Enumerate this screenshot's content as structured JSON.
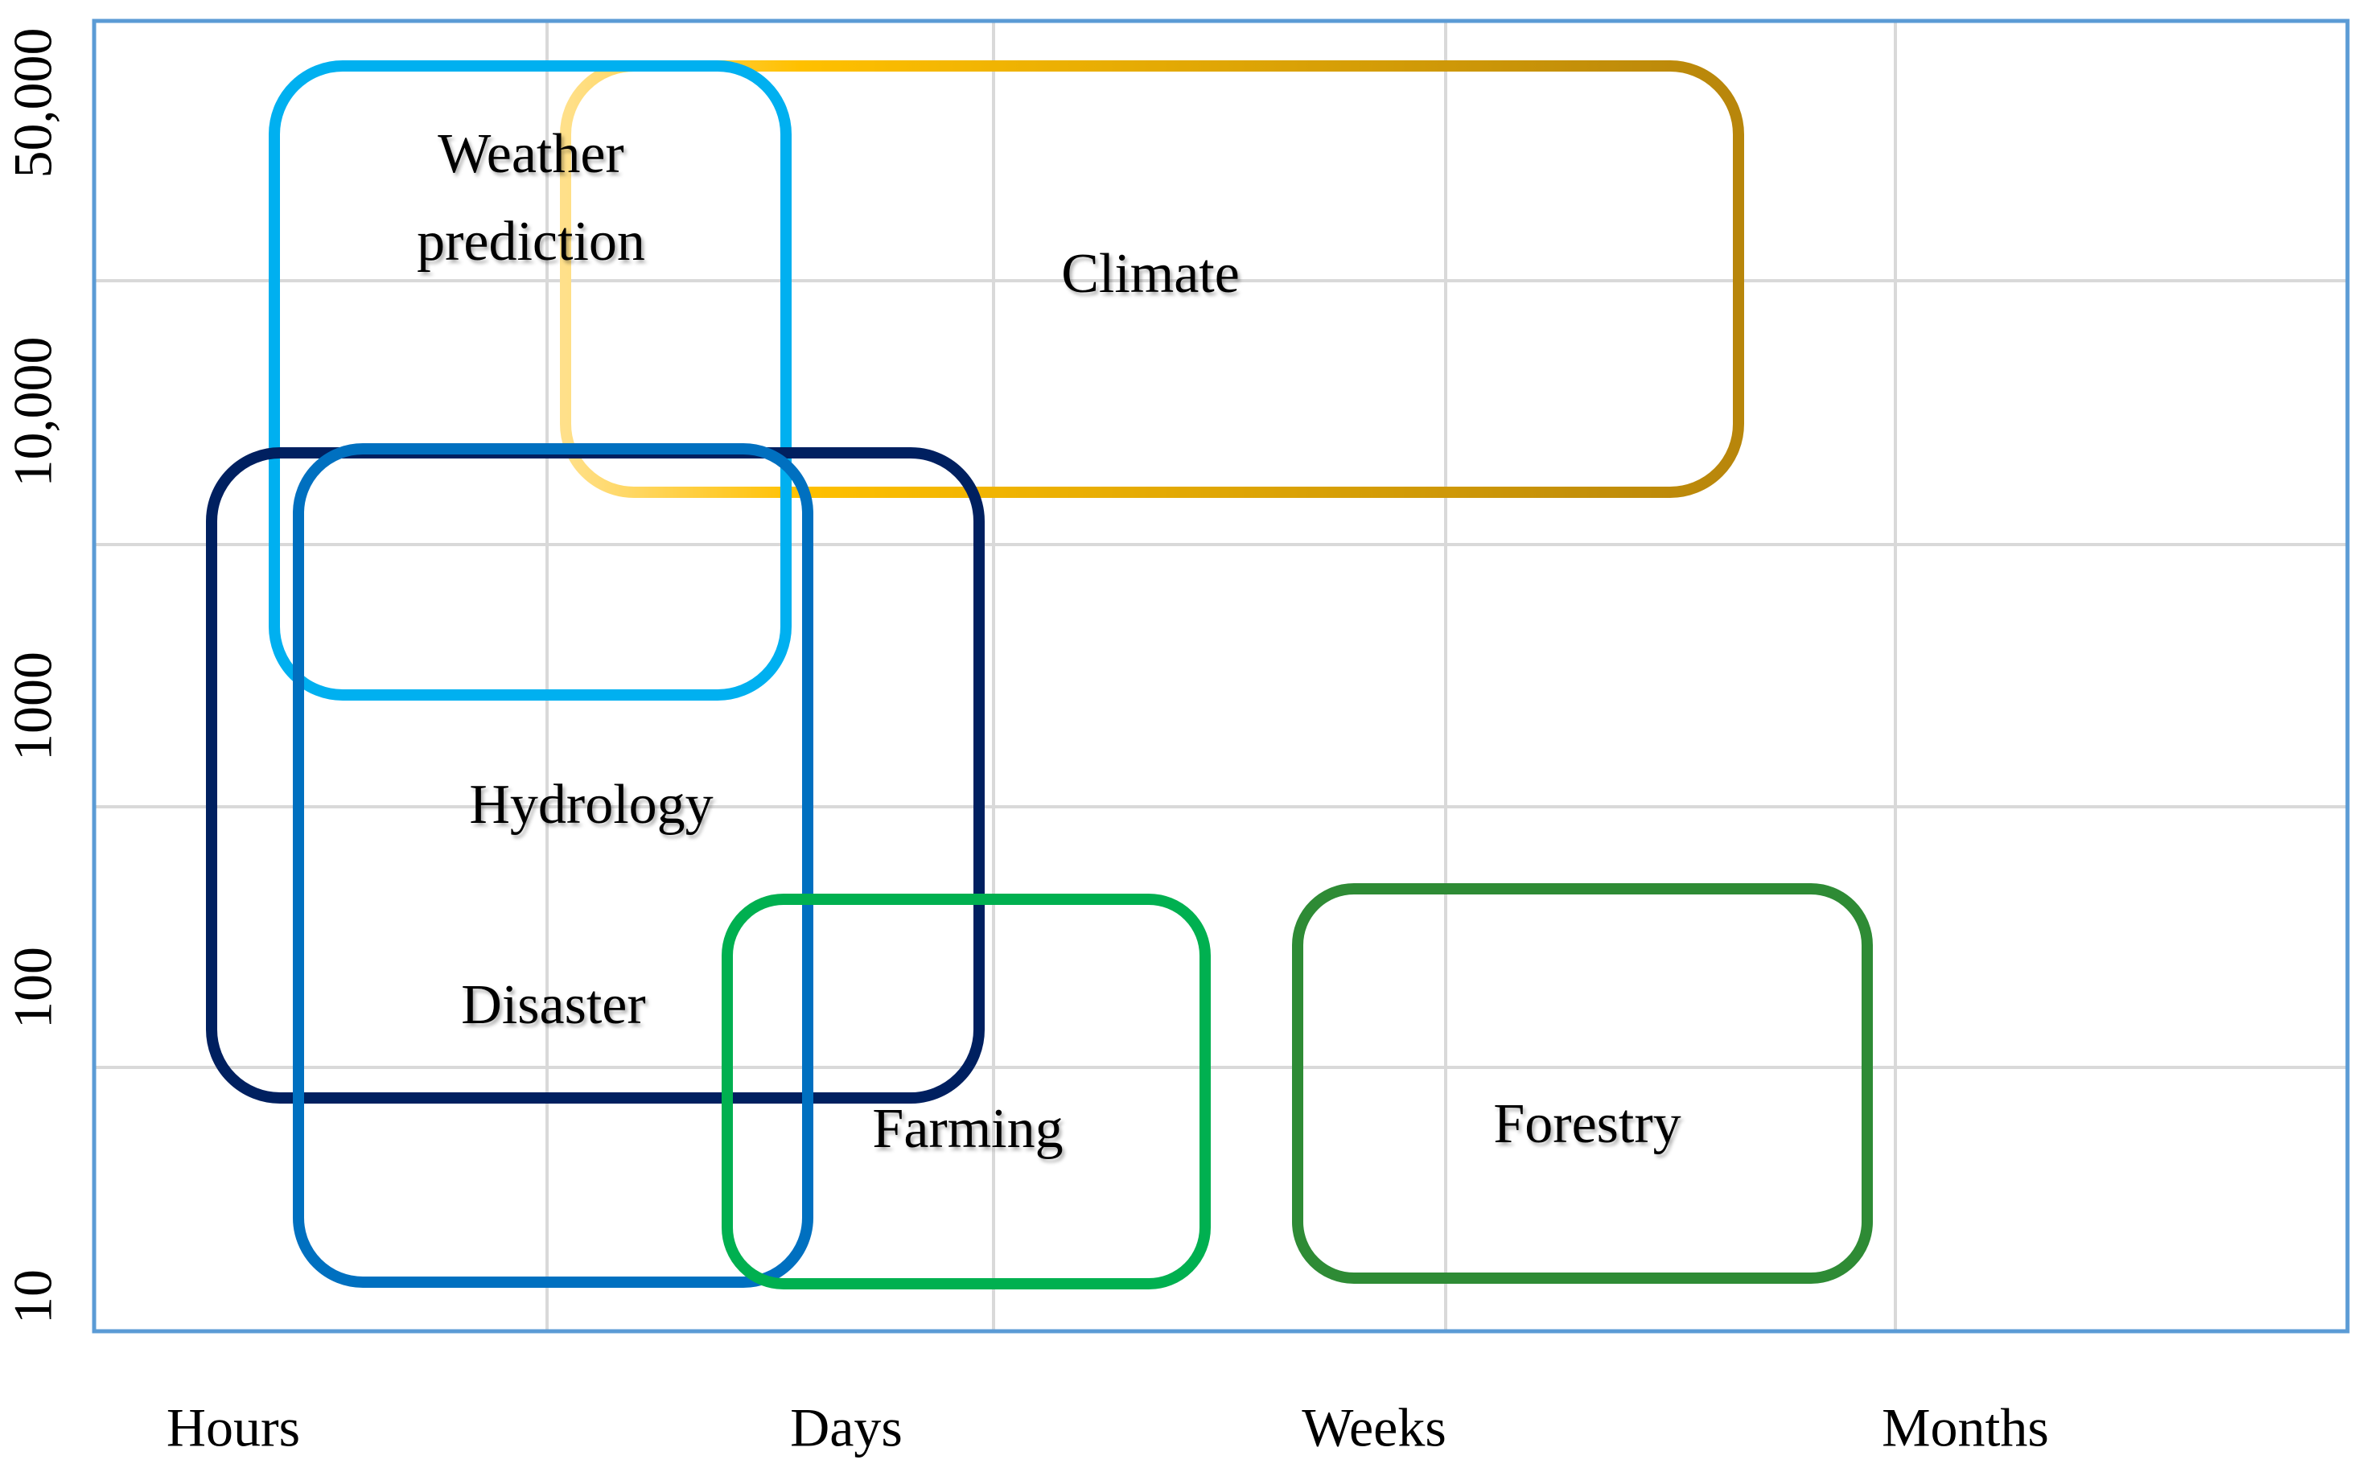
{
  "chart_data": {
    "type": "diagram",
    "x_categories": [
      "Hours",
      "Days",
      "Weeks",
      "Months"
    ],
    "y_ticks": [
      "10",
      "100",
      "1000",
      "10,000",
      "50,000"
    ],
    "regions": [
      {
        "name": "Climate",
        "color_from": "#ffe08a",
        "color_mid": "#ffc000",
        "color_to": "#b8860b"
      },
      {
        "name": "Weather prediction",
        "lines": [
          "Weather",
          "prediction"
        ],
        "color": "#00b0f0"
      },
      {
        "name": "Hydrology",
        "color": "#002060"
      },
      {
        "name": "Disaster",
        "color": "#0070c0"
      },
      {
        "name": "Farming",
        "color": "#00b050"
      },
      {
        "name": "Forestry",
        "color": "#2e8b35"
      }
    ]
  }
}
